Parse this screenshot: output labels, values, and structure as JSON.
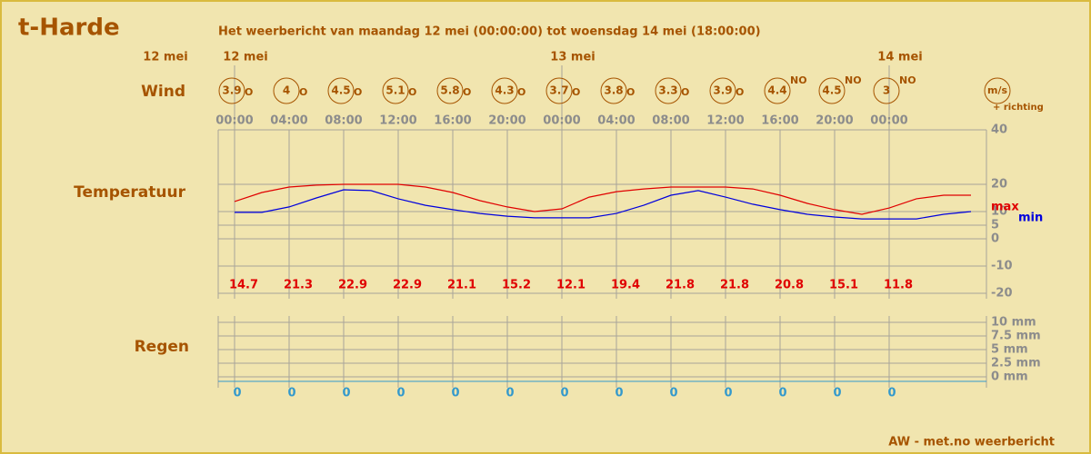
{
  "title": "t-Harde",
  "subtitle": "Het weerbericht van maandag 12 mei (00:00:00) tot woensdag 14 mei (18:00:00)",
  "footer": "AW - met.no weerbericht",
  "dates": [
    "12 mei",
    "12 mei",
    "13 mei",
    "14 mei"
  ],
  "row_labels": {
    "wind": "Wind",
    "temperature": "Temperatuur",
    "rain": "Regen"
  },
  "wind": {
    "speeds": [
      3.9,
      4,
      4.5,
      5.1,
      5.8,
      4.3,
      3.7,
      3.8,
      3.3,
      3.9,
      4.4,
      4.5,
      3
    ],
    "directions": [
      "O",
      "O",
      "O",
      "O",
      "O",
      "O",
      "O",
      "O",
      "O",
      "O",
      "NO",
      "NO",
      "NO"
    ],
    "unit": "m/s",
    "unit_note": "+ richting"
  },
  "chart_data": [
    {
      "type": "line",
      "categories": [
        "00:00",
        null,
        "04:00",
        null,
        "08:00",
        null,
        "12:00",
        null,
        "16:00",
        null,
        "20:00",
        null,
        "00:00",
        null,
        "04:00",
        null,
        "08:00",
        null,
        "12:00",
        null,
        "16:00",
        null,
        "20:00",
        null,
        "00:00",
        null,
        null,
        null
      ],
      "series": [
        {
          "name": "max",
          "color": "#e00000",
          "values": [
            13.7,
            17,
            19,
            19.7,
            20,
            20,
            20,
            19,
            17,
            14,
            11.7,
            10,
            11,
            15.3,
            17.3,
            18.3,
            19,
            19,
            19,
            18.3,
            16,
            13,
            10.7,
            9,
            11.3,
            14.7,
            16,
            16
          ]
        },
        {
          "name": "min",
          "color": "#0000dd",
          "values": [
            9.7,
            9.7,
            11.7,
            15,
            18,
            17.7,
            14.7,
            12.3,
            10.7,
            9.3,
            8.3,
            7.7,
            7.7,
            7.7,
            9.3,
            12.3,
            16,
            17.7,
            15.3,
            12.7,
            10.7,
            9,
            8,
            7.3,
            7.3,
            7.3,
            9,
            10
          ]
        }
      ],
      "max_labels": [
        14.7,
        21.3,
        22.9,
        22.9,
        21.1,
        15.2,
        12.1,
        19.4,
        21.8,
        21.8,
        20.8,
        15.1,
        11.8
      ],
      "ylim": [
        -20,
        40
      ],
      "yticks": [
        40,
        20,
        10,
        5,
        0,
        -10,
        -20
      ],
      "grid": true
    },
    {
      "type": "bar",
      "color": "#3399cc",
      "values": [
        0,
        0,
        0,
        0,
        0,
        0,
        0,
        0,
        0,
        0,
        0,
        0,
        0
      ],
      "ylim": [
        0,
        10
      ],
      "yticks": [
        {
          "value": 10,
          "label": "10 mm"
        },
        {
          "value": 7.5,
          "label": "7.5 mm"
        },
        {
          "value": 5,
          "label": "5 mm"
        },
        {
          "value": 2.5,
          "label": "2.5 mm"
        },
        {
          "value": 0,
          "label": "0 mm"
        }
      ],
      "grid": true
    }
  ]
}
